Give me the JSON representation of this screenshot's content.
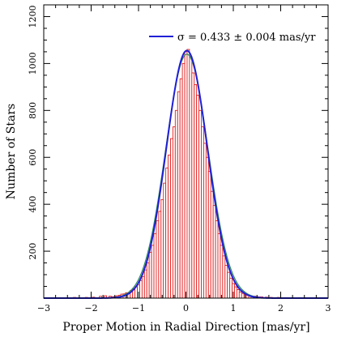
{
  "chart_data": {
    "type": "bar",
    "xlabel": "Proper Motion in Radial Direction [mas/yr]",
    "ylabel": "Number of Stars",
    "xlim": [
      -3,
      3
    ],
    "ylim": [
      0,
      1250
    ],
    "x_ticks": [
      "−3",
      "−2",
      "−1",
      "0",
      "1",
      "2",
      "3"
    ],
    "y_ticks": [
      "200",
      "400",
      "600",
      "800",
      "1000",
      "1200"
    ],
    "legend": {
      "label": "σ = 0.433 ± 0.004 mas/yr",
      "position": "top-right",
      "color": "#1f1fd6"
    },
    "histogram": {
      "bin_width": 0.05,
      "bins": [
        {
          "x": -2.7,
          "y": 2
        },
        {
          "x": -2.35,
          "y": 3
        },
        {
          "x": -2.1,
          "y": 3
        },
        {
          "x": -1.95,
          "y": 4
        },
        {
          "x": -1.8,
          "y": 8
        },
        {
          "x": -1.7,
          "y": 10
        },
        {
          "x": -1.6,
          "y": 8
        },
        {
          "x": -1.55,
          "y": 6
        },
        {
          "x": -1.5,
          "y": 6
        },
        {
          "x": -1.45,
          "y": 10
        },
        {
          "x": -1.4,
          "y": 12
        },
        {
          "x": -1.35,
          "y": 17
        },
        {
          "x": -1.3,
          "y": 18
        },
        {
          "x": -1.25,
          "y": 23
        },
        {
          "x": -1.2,
          "y": 22
        },
        {
          "x": -1.15,
          "y": 33
        },
        {
          "x": -1.1,
          "y": 40
        },
        {
          "x": -1.05,
          "y": 48
        },
        {
          "x": -1.0,
          "y": 56
        },
        {
          "x": -0.95,
          "y": 75
        },
        {
          "x": -0.9,
          "y": 92
        },
        {
          "x": -0.85,
          "y": 120
        },
        {
          "x": -0.8,
          "y": 150
        },
        {
          "x": -0.75,
          "y": 195
        },
        {
          "x": -0.7,
          "y": 225
        },
        {
          "x": -0.65,
          "y": 275
        },
        {
          "x": -0.6,
          "y": 330
        },
        {
          "x": -0.55,
          "y": 370
        },
        {
          "x": -0.5,
          "y": 420
        },
        {
          "x": -0.45,
          "y": 490
        },
        {
          "x": -0.4,
          "y": 555
        },
        {
          "x": -0.35,
          "y": 610
        },
        {
          "x": -0.3,
          "y": 680
        },
        {
          "x": -0.25,
          "y": 730
        },
        {
          "x": -0.2,
          "y": 800
        },
        {
          "x": -0.15,
          "y": 880
        },
        {
          "x": -0.1,
          "y": 935
        },
        {
          "x": -0.05,
          "y": 1000
        },
        {
          "x": 0.0,
          "y": 1050
        },
        {
          "x": 0.05,
          "y": 1060
        },
        {
          "x": 0.1,
          "y": 1030
        },
        {
          "x": 0.15,
          "y": 960
        },
        {
          "x": 0.2,
          "y": 910
        },
        {
          "x": 0.25,
          "y": 865
        },
        {
          "x": 0.3,
          "y": 800
        },
        {
          "x": 0.35,
          "y": 730
        },
        {
          "x": 0.4,
          "y": 660
        },
        {
          "x": 0.45,
          "y": 600
        },
        {
          "x": 0.5,
          "y": 540
        },
        {
          "x": 0.55,
          "y": 455
        },
        {
          "x": 0.6,
          "y": 395
        },
        {
          "x": 0.65,
          "y": 330
        },
        {
          "x": 0.7,
          "y": 275
        },
        {
          "x": 0.75,
          "y": 225
        },
        {
          "x": 0.8,
          "y": 180
        },
        {
          "x": 0.85,
          "y": 140
        },
        {
          "x": 0.9,
          "y": 110
        },
        {
          "x": 0.95,
          "y": 85
        },
        {
          "x": 1.0,
          "y": 62
        },
        {
          "x": 1.05,
          "y": 48
        },
        {
          "x": 1.1,
          "y": 36
        },
        {
          "x": 1.15,
          "y": 26
        },
        {
          "x": 1.2,
          "y": 20
        },
        {
          "x": 1.25,
          "y": 15
        },
        {
          "x": 1.3,
          "y": 12
        },
        {
          "x": 1.35,
          "y": 10
        },
        {
          "x": 1.4,
          "y": 8
        },
        {
          "x": 1.45,
          "y": 8
        },
        {
          "x": 1.5,
          "y": 6
        },
        {
          "x": 1.55,
          "y": 5
        },
        {
          "x": 1.6,
          "y": 5
        },
        {
          "x": 1.7,
          "y": 4
        },
        {
          "x": 1.8,
          "y": 3
        },
        {
          "x": 1.95,
          "y": 3
        },
        {
          "x": 2.1,
          "y": 2
        },
        {
          "x": 2.4,
          "y": 2
        },
        {
          "x": 2.7,
          "y": 1
        }
      ]
    },
    "fit_curve": {
      "mu": 0.02,
      "sigma": 0.433,
      "amplitude": 1055,
      "color": "#1f1fd6"
    },
    "second_curve": {
      "mu": 0.02,
      "sigma": 0.45,
      "amplitude": 1040,
      "color": "#2e8b57"
    },
    "bar_color": "#e02020",
    "grid": false
  }
}
